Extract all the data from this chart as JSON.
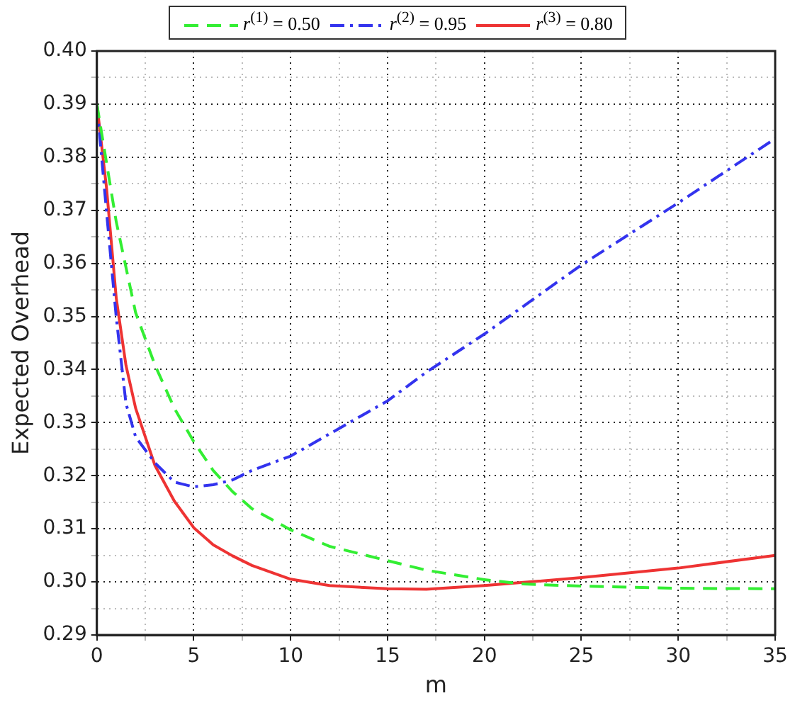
{
  "chart_data": {
    "type": "line",
    "xlabel": "m",
    "ylabel": "Expected Overhead",
    "legend": "top",
    "grid": true,
    "marker": "none",
    "xlim": [
      0,
      35
    ],
    "ylim": [
      0.29,
      0.4
    ],
    "xticks": [
      0,
      {
        "value": 2.5,
        "label": null
      },
      5,
      {
        "value": 7.5,
        "label": null
      },
      10,
      {
        "value": 12.5,
        "label": null
      },
      15,
      {
        "value": 17.5,
        "label": null
      },
      20,
      {
        "value": 22.5,
        "label": null
      },
      25,
      {
        "value": 27.5,
        "label": null
      },
      30,
      {
        "value": 32.5,
        "label": null
      },
      35
    ],
    "yticks": [
      {
        "value": 0.29,
        "label": "0.29"
      },
      {
        "value": 0.295,
        "label": null
      },
      {
        "value": 0.3,
        "label": "0.30"
      },
      {
        "value": 0.305,
        "label": null
      },
      {
        "value": 0.31,
        "label": "0.31"
      },
      {
        "value": 0.315,
        "label": null
      },
      {
        "value": 0.32,
        "label": "0.32"
      },
      {
        "value": 0.325,
        "label": null
      },
      {
        "value": 0.33,
        "label": "0.33"
      },
      {
        "value": 0.335,
        "label": null
      },
      {
        "value": 0.34,
        "label": "0.34"
      },
      {
        "value": 0.345,
        "label": null
      },
      {
        "value": 0.35,
        "label": "0.35"
      },
      {
        "value": 0.355,
        "label": null
      },
      {
        "value": 0.36,
        "label": "0.36"
      },
      {
        "value": 0.365,
        "label": null
      },
      {
        "value": 0.37,
        "label": "0.37"
      },
      {
        "value": 0.375,
        "label": null
      },
      {
        "value": 0.38,
        "label": "0.38"
      },
      {
        "value": 0.385,
        "label": null
      },
      {
        "value": 0.39,
        "label": "0.39"
      },
      {
        "value": 0.395,
        "label": null
      },
      {
        "value": 0.4,
        "label": "0.40"
      }
    ],
    "x": [
      0,
      1,
      2,
      3,
      4,
      5,
      6,
      7,
      8,
      10,
      12,
      15,
      17,
      20,
      22,
      25,
      30,
      35
    ],
    "series": [
      {
        "name": "r$^{(1)}$ = 0.50",
        "color": "#33ee33",
        "line_style": "dashed",
        "values": [
          0.39,
          0.3678,
          0.3507,
          0.3408,
          0.3327,
          0.3264,
          0.321,
          0.317,
          0.3138,
          0.3098,
          0.3067,
          0.304,
          0.3022,
          0.3004,
          0.2996,
          0.2992,
          0.2988,
          0.2987
        ]
      },
      {
        "name": "r$^{(2)}$ = 0.95",
        "color": "#3333ee",
        "line_style": "dashdot",
        "x": [
          0,
          0.5,
          1,
          1.5,
          2,
          3,
          4,
          5,
          6,
          7,
          8,
          10,
          15,
          17,
          20,
          25,
          30,
          35
        ],
        "values": [
          0.39,
          0.3696,
          0.3498,
          0.3336,
          0.3273,
          0.3224,
          0.3188,
          0.3179,
          0.3183,
          0.3192,
          0.321,
          0.3237,
          0.3341,
          0.3395,
          0.3467,
          0.3597,
          0.3714,
          0.3835
        ]
      },
      {
        "name": "r$^{(3)}$ = 0.80",
        "color": "#ee3333",
        "line_style": "solid",
        "x": [
          0,
          0.5,
          1,
          1.5,
          2,
          3,
          4,
          5,
          6,
          7,
          8,
          10,
          12,
          15,
          17,
          20,
          22,
          25,
          30,
          35
        ],
        "values": [
          0.39,
          0.3741,
          0.3534,
          0.3408,
          0.3327,
          0.3219,
          0.3152,
          0.3102,
          0.307,
          0.3049,
          0.3031,
          0.3005,
          0.2993,
          0.2987,
          0.2986,
          0.2993,
          0.2999,
          0.3008,
          0.3026,
          0.305
        ]
      }
    ]
  }
}
